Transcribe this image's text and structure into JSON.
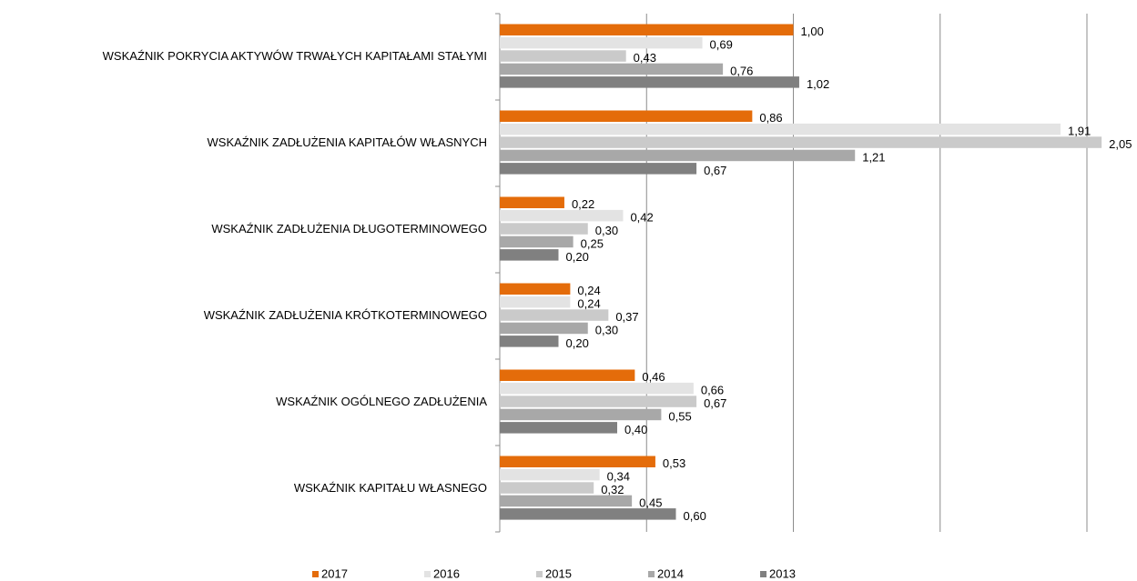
{
  "chart_data": {
    "type": "hbar",
    "categories": [
      "WSKAŹNIK POKRYCIA AKTYWÓW TRWAŁYCH KAPITAŁAMI STAŁYMI",
      "WSKAŹNIK ZADŁUŻENIA KAPITAŁÓW WŁASNYCH",
      "WSKAŹNIK ZADŁUŻENIA DŁUGOTERMINOWEGO",
      "WSKAŹNIK ZADŁUŻENIA KRÓTKOTERMINOWEGO",
      "WSKAŹNIK OGÓLNEGO ZADŁUŻENIA",
      "WSKAŹNIK KAPITAŁU WŁASNEGO"
    ],
    "series": [
      {
        "name": "2017",
        "color": "#e46c0a",
        "values": [
          1.0,
          0.86,
          0.22,
          0.24,
          0.46,
          0.53
        ],
        "value_labels": [
          "1,00",
          "0,86",
          "0,22",
          "0,24",
          "0,46",
          "0,53"
        ]
      },
      {
        "name": "2016",
        "color": "#e3e3e3",
        "values": [
          0.69,
          1.91,
          0.42,
          0.24,
          0.66,
          0.34
        ],
        "value_labels": [
          "0,69",
          "1,91",
          "0,42",
          "0,24",
          "0,66",
          "0,34"
        ]
      },
      {
        "name": "2015",
        "color": "#cacaca",
        "values": [
          0.43,
          2.05,
          0.3,
          0.37,
          0.67,
          0.32
        ],
        "value_labels": [
          "0,43",
          "2,05",
          "0,30",
          "0,37",
          "0,67",
          "0,32"
        ]
      },
      {
        "name": "2014",
        "color": "#a8a8a8",
        "values": [
          0.76,
          1.21,
          0.25,
          0.3,
          0.55,
          0.45
        ],
        "value_labels": [
          "0,76",
          "1,21",
          "0,25",
          "0,30",
          "0,55",
          "0,45"
        ]
      },
      {
        "name": "2013",
        "color": "#808080",
        "values": [
          1.02,
          0.67,
          0.2,
          0.2,
          0.4,
          0.6
        ],
        "value_labels": [
          "1,02",
          "0,67",
          "0,20",
          "0,20",
          "0,40",
          "0,60"
        ]
      }
    ],
    "xlim": [
      0,
      2
    ],
    "xticks": [
      0,
      0.5,
      1,
      1.5,
      2
    ],
    "grid": true,
    "legend": "bottom"
  }
}
